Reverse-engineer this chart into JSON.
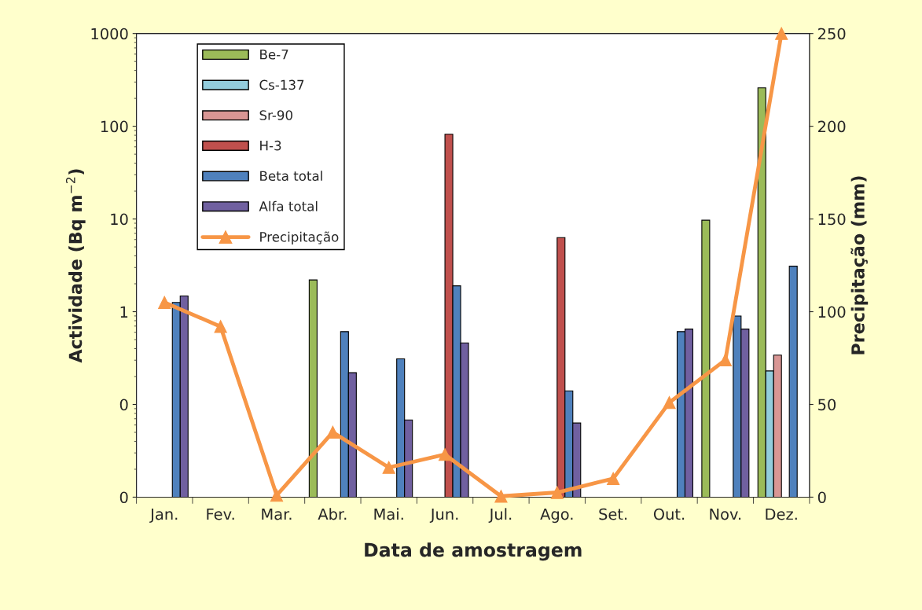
{
  "chart_data": {
    "type": "bar",
    "xlabel": "Data de amostragem",
    "ylabel": "Actividade (Bq m$^{−2}$)",
    "y2label": "Precipitação (mm)",
    "categories": [
      "Jan.",
      "Fev.",
      "Mar.",
      "Abr.",
      "Mai.",
      "Jun.",
      "Jul.",
      "Ago.",
      "Set.",
      "Out.",
      "Nov.",
      "Dez."
    ],
    "log": "y",
    "ylim": [
      0.01,
      1000
    ],
    "yticks": [
      {
        "value": 0.01,
        "label": "0"
      },
      {
        "value": 0.1,
        "label": "0"
      },
      1,
      10,
      100,
      1000
    ],
    "y2lim": [
      0,
      250
    ],
    "y2ticks": [
      0,
      50,
      100,
      150,
      200,
      250
    ],
    "grid": false,
    "legend": "top left",
    "series": [
      {
        "name": "Be-7",
        "color": "#9bbb59",
        "values": [
          null,
          null,
          null,
          2.2,
          null,
          null,
          null,
          null,
          null,
          null,
          9.7,
          260
        ]
      },
      {
        "name": "Cs-137",
        "color": "#93cddd",
        "values": [
          null,
          null,
          null,
          null,
          null,
          null,
          null,
          null,
          null,
          null,
          null,
          0.23
        ]
      },
      {
        "name": "Sr-90",
        "color": "#d99694",
        "values": [
          null,
          null,
          null,
          null,
          null,
          null,
          null,
          null,
          null,
          null,
          null,
          0.34
        ]
      },
      {
        "name": "H-3",
        "color": "#c0504d",
        "values": [
          null,
          null,
          null,
          null,
          null,
          82,
          null,
          6.3,
          null,
          null,
          null,
          null
        ]
      },
      {
        "name": "Beta total",
        "color": "#4f81bd",
        "values": [
          1.26,
          null,
          null,
          0.61,
          0.31,
          1.9,
          null,
          0.14,
          null,
          0.61,
          0.9,
          3.1
        ]
      },
      {
        "name": "Alfa total",
        "color": "#7060a0",
        "values": [
          1.48,
          null,
          null,
          0.22,
          0.068,
          0.46,
          null,
          0.063,
          null,
          0.65,
          0.65,
          null
        ]
      },
      {
        "name": "Precipitação",
        "type": "line",
        "axis": "y2",
        "color": "#f79646",
        "marker": "triangle",
        "values": [
          105,
          92,
          1,
          35,
          16,
          23,
          0.5,
          2.5,
          10,
          51,
          74,
          250
        ]
      }
    ]
  }
}
